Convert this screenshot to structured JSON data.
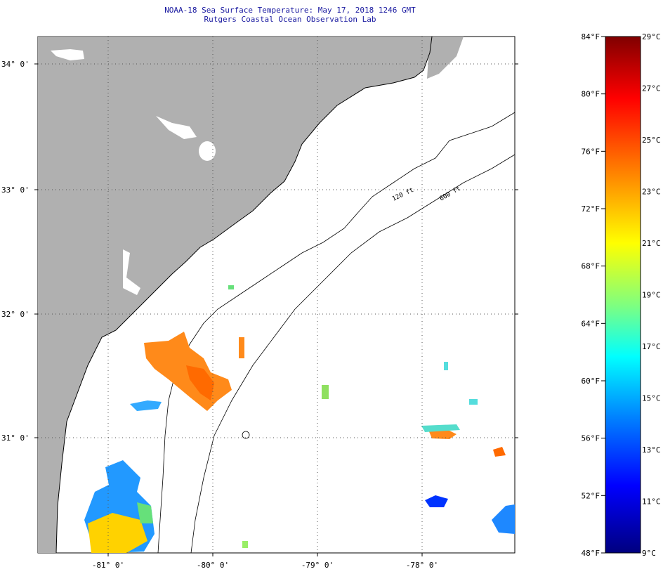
{
  "title": "NOAA-18 Sea Surface Temperature:  May 17, 2018 1246 GMT",
  "subtitle": "Rutgers Coastal Ocean Observation Lab",
  "lat_labels": [
    "34° 0'",
    "33° 0'",
    "32° 0'",
    "31° 0'"
  ],
  "lon_labels": [
    "-81° 0'",
    "-80° 0'",
    "-79° 0'",
    "-78° 0'"
  ],
  "contour_labels": [
    "120 ft",
    "600 ft"
  ],
  "colorbar": {
    "fahrenheit": [
      "84°F",
      "80°F",
      "76°F",
      "72°F",
      "68°F",
      "64°F",
      "60°F",
      "56°F",
      "52°F",
      "48°F"
    ],
    "celsius": [
      "29°C",
      "27°C",
      "25°C",
      "23°C",
      "21°C",
      "19°C",
      "17°C",
      "15°C",
      "13°C",
      "11°C",
      "9°C"
    ],
    "colors": [
      "#800000",
      "#ff0000",
      "#ff7f00",
      "#ffff00",
      "#7fff7f",
      "#00ffff",
      "#007fff",
      "#0000ff",
      "#00007f"
    ]
  },
  "colors": {
    "land": "#b0b0b0",
    "ocean": "#ffffff",
    "title": "#1a1aa0",
    "coast": "#000000"
  }
}
